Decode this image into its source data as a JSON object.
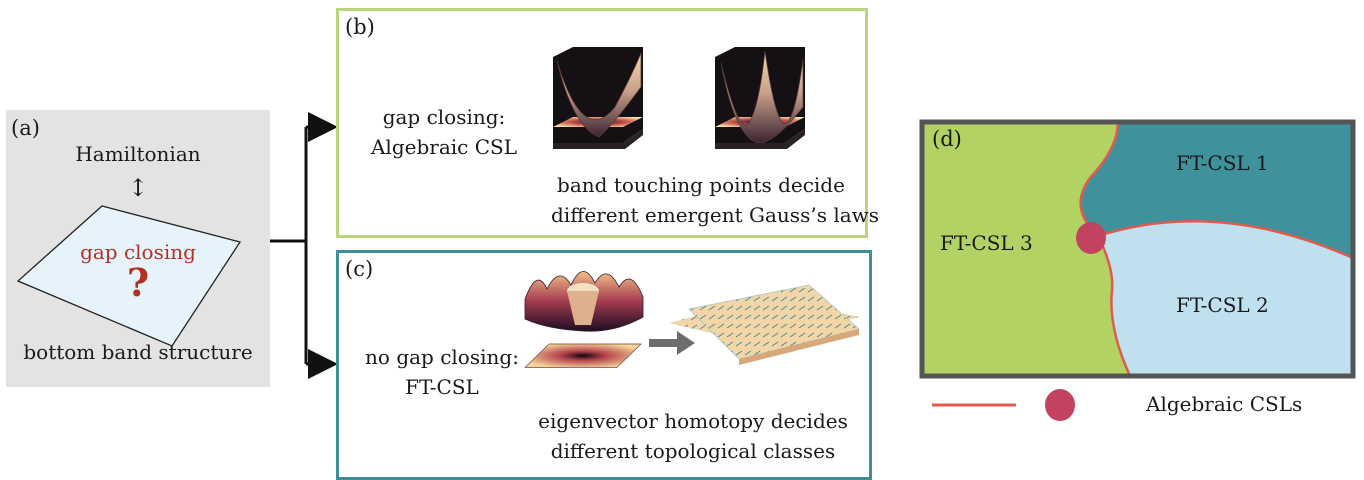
{
  "panel_a": {
    "label": "(a)",
    "hamiltonian": "Hamiltonian",
    "arrow": "↕",
    "gap_closing": "gap closing",
    "question": "?",
    "bottom": "bottom band structure"
  },
  "panel_b": {
    "label": "(b)",
    "line1": "gap closing:",
    "line2": "Algebraic CSL",
    "caption1": "band touching points decide",
    "caption2": "different emergent Gauss’s laws"
  },
  "panel_c": {
    "label": "(c)",
    "line1": "no gap closing:",
    "line2": "FT-CSL",
    "caption1": "eigenvector homotopy decides",
    "caption2": "different topological classes"
  },
  "panel_d": {
    "label": "(d)",
    "region1": "FT-CSL 1",
    "region2": "FT-CSL 2",
    "region3": "FT-CSL 3",
    "legend": "Algebraic CSLs"
  },
  "colors": {
    "green_region": "#b3d264",
    "teal_region": "#3f919b",
    "light_blue_region": "#bfe0ee",
    "boundary": "#e05a4e",
    "point": "#c2435f",
    "accent_red": "#b23124"
  }
}
